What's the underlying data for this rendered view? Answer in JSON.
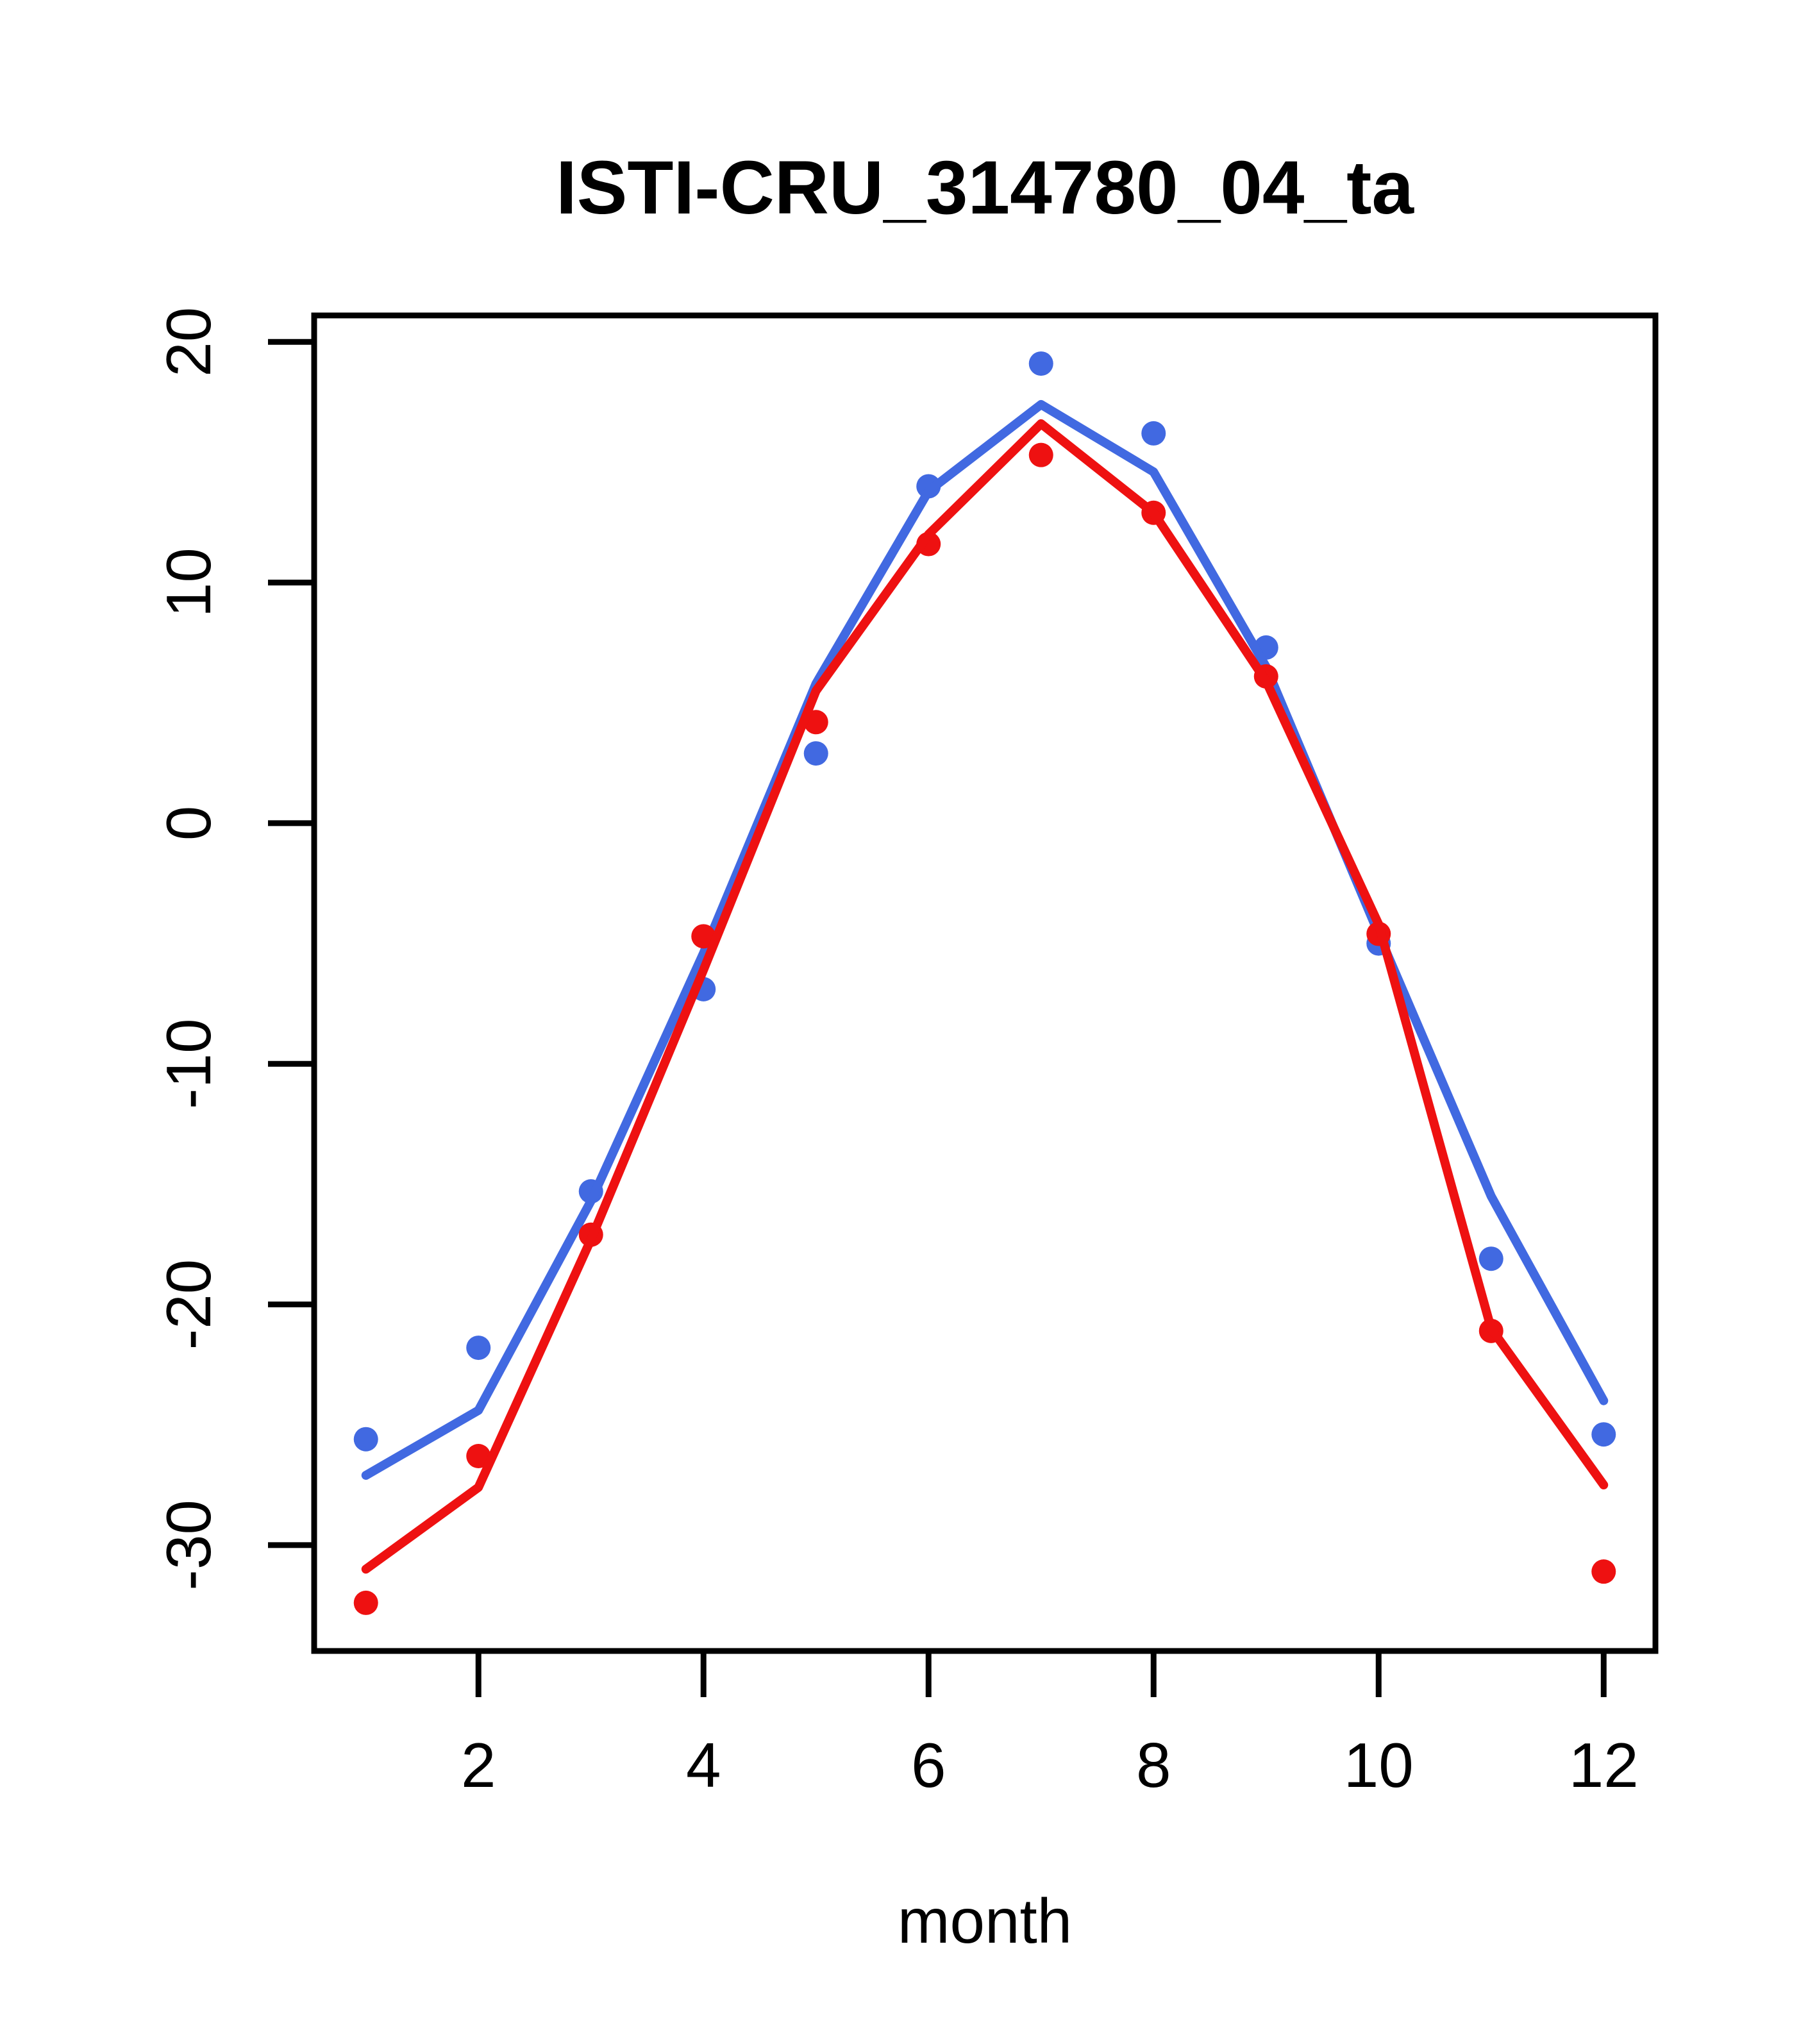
{
  "chart_data": {
    "type": "line",
    "title": "ISTI-CRU_314780_04_ta",
    "xlabel": "month",
    "ylabel": "",
    "x_ticks": [
      2,
      4,
      6,
      8,
      10,
      12
    ],
    "y_ticks": [
      20,
      10,
      0,
      -10,
      -20,
      -30
    ],
    "xlim": [
      0.54,
      12.46
    ],
    "ylim": [
      -34.4,
      21.1
    ],
    "grid": false,
    "legend": "none",
    "x": [
      1,
      2,
      3,
      4,
      5,
      6,
      7,
      8,
      9,
      10,
      11,
      12
    ],
    "series": [
      {
        "name": "station-monthly-points-blue",
        "type": "points",
        "color": "#4169e1",
        "values": [
          -25.6,
          -21.8,
          -15.3,
          -6.9,
          2.9,
          14.0,
          19.1,
          16.2,
          7.3,
          -5.0,
          -18.1,
          -25.4
        ]
      },
      {
        "name": "reference-climatology-line-blue",
        "type": "line",
        "color": "#4169e1",
        "values": [
          -27.1,
          -24.4,
          -15.7,
          -5.4,
          5.8,
          13.8,
          17.4,
          14.6,
          6.5,
          -4.6,
          -15.5,
          -24.0
        ]
      },
      {
        "name": "station-monthly-points-red",
        "type": "points",
        "color": "#ee1111",
        "values": [
          -32.4,
          -26.3,
          -17.1,
          -4.7,
          4.2,
          11.6,
          15.3,
          12.9,
          6.1,
          -4.6,
          -21.1,
          -31.1
        ]
      },
      {
        "name": "reference-climatology-line-red",
        "type": "line",
        "color": "#ee1111",
        "values": [
          -31.0,
          -27.6,
          -17.3,
          -6.1,
          5.5,
          12.0,
          16.6,
          12.9,
          5.9,
          -4.2,
          -21.0,
          -27.5
        ]
      }
    ],
    "colors": {
      "blue": "#4169e1",
      "red": "#ee1111",
      "axis": "#000000",
      "background": "#ffffff"
    }
  }
}
